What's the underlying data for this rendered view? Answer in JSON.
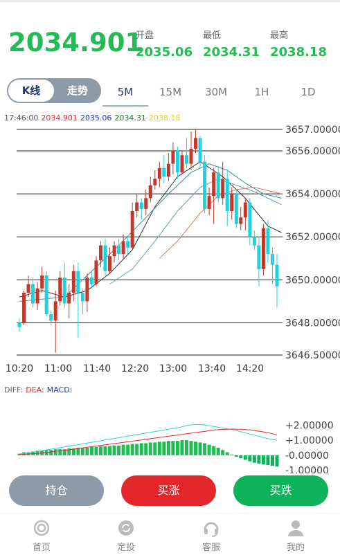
{
  "header": {
    "price": "2034.901",
    "open_label": "开盘",
    "open_value": "2035.06",
    "low_label": "最低",
    "low_value": "2034.31",
    "high_label": "最高",
    "high_value": "2038.18"
  },
  "toggle": {
    "kline_label": "K线",
    "trend_label": "走势"
  },
  "periods": [
    "5M",
    "15M",
    "30M",
    "1H",
    "1D"
  ],
  "info": {
    "time": "17:46:00",
    "v1": "2034.901",
    "v2": "2035.06",
    "v3": "2034.31",
    "v4": "2038.18"
  },
  "colors": {
    "green": "#22bb55",
    "red": "#e3262c",
    "blue": "#1e3a6e",
    "gray": "#8d9aa8"
  },
  "chart_data": [
    {
      "type": "candlestick",
      "y_ticks": [
        "3657.00000",
        "3656.00000",
        "3654.00000",
        "3652.00000",
        "3650.00000",
        "3648.00000",
        "3646.50000"
      ],
      "y_tick_values": [
        3657,
        3656,
        3654,
        3652,
        3650,
        3648,
        3646.5
      ],
      "ylim": [
        3646.5,
        3657
      ],
      "x_ticks": [
        "10:20",
        "11:00",
        "11:40",
        "12:20",
        "13:00",
        "13:40",
        "14:20"
      ],
      "candles": [
        [
          3648.0,
          3647.8,
          3648.2,
          3647.6
        ],
        [
          3648.0,
          3649.4,
          3649.5,
          3647.9
        ],
        [
          3649.4,
          3649.8,
          3650.2,
          3649.2
        ],
        [
          3649.8,
          3648.9,
          3650.1,
          3648.7
        ],
        [
          3648.9,
          3649.6,
          3649.9,
          3648.6
        ],
        [
          3649.6,
          3650.2,
          3650.6,
          3649.4
        ],
        [
          3650.2,
          3648.4,
          3650.4,
          3648.3
        ],
        [
          3648.4,
          3648.1,
          3648.6,
          3647.9
        ],
        [
          3648.1,
          3649.0,
          3649.5,
          3646.6
        ],
        [
          3649.0,
          3650.1,
          3650.4,
          3648.8
        ],
        [
          3650.1,
          3648.9,
          3650.8,
          3648.7
        ],
        [
          3648.9,
          3649.4,
          3649.8,
          3648.2
        ],
        [
          3649.4,
          3650.4,
          3650.7,
          3649.0
        ],
        [
          3650.4,
          3649.4,
          3650.8,
          3647.3
        ],
        [
          3649.4,
          3649.0,
          3649.6,
          3648.4
        ],
        [
          3649.0,
          3650.1,
          3650.3,
          3648.5
        ],
        [
          3650.1,
          3649.8,
          3650.4,
          3649.6
        ],
        [
          3649.8,
          3650.9,
          3651.1,
          3649.7
        ],
        [
          3650.9,
          3651.6,
          3651.8,
          3650.6
        ],
        [
          3651.6,
          3650.4,
          3651.9,
          3650.1
        ],
        [
          3650.4,
          3651.1,
          3651.5,
          3650.3
        ],
        [
          3651.1,
          3651.6,
          3651.8,
          3650.8
        ],
        [
          3651.6,
          3651.2,
          3651.9,
          3650.9
        ],
        [
          3651.2,
          3651.8,
          3652.1,
          3651.0
        ],
        [
          3651.8,
          3651.5,
          3652.0,
          3651.2
        ],
        [
          3651.5,
          3653.2,
          3653.6,
          3651.4
        ],
        [
          3653.2,
          3653.6,
          3654.0,
          3652.9
        ],
        [
          3653.6,
          3653.3,
          3653.8,
          3652.8
        ],
        [
          3653.3,
          3653.8,
          3654.2,
          3653.0
        ],
        [
          3653.8,
          3654.4,
          3654.8,
          3653.6
        ],
        [
          3654.4,
          3654.7,
          3655.1,
          3654.2
        ],
        [
          3654.7,
          3655.2,
          3655.5,
          3654.3
        ],
        [
          3655.2,
          3654.8,
          3655.8,
          3654.5
        ],
        [
          3654.8,
          3655.4,
          3655.9,
          3654.6
        ],
        [
          3655.4,
          3656.0,
          3656.4,
          3654.9
        ],
        [
          3656.0,
          3655.0,
          3656.2,
          3654.7
        ],
        [
          3655.0,
          3655.8,
          3656.0,
          3654.9
        ],
        [
          3655.8,
          3655.4,
          3656.6,
          3655.2
        ],
        [
          3655.4,
          3656.1,
          3656.9,
          3655.1
        ],
        [
          3656.1,
          3656.6,
          3657.0,
          3655.9
        ],
        [
          3656.6,
          3655.5,
          3656.7,
          3655.2
        ],
        [
          3655.5,
          3653.3,
          3655.8,
          3653.1
        ],
        [
          3653.3,
          3653.9,
          3654.3,
          3653.0
        ],
        [
          3653.9,
          3655.0,
          3655.2,
          3652.6
        ],
        [
          3655.0,
          3653.8,
          3655.3,
          3653.6
        ],
        [
          3653.8,
          3654.7,
          3655.5,
          3653.5
        ],
        [
          3654.7,
          3653.2,
          3655.1,
          3652.5
        ],
        [
          3653.2,
          3654.0,
          3654.3,
          3652.8
        ],
        [
          3654.0,
          3652.6,
          3654.2,
          3652.4
        ],
        [
          3652.6,
          3652.9,
          3653.4,
          3652.3
        ],
        [
          3652.9,
          3653.6,
          3653.8,
          3652.3
        ],
        [
          3653.6,
          3652.0,
          3653.8,
          3651.6
        ],
        [
          3652.0,
          3651.6,
          3652.3,
          3651.4
        ],
        [
          3651.6,
          3650.5,
          3652.0,
          3649.7
        ],
        [
          3650.5,
          3652.4,
          3652.6,
          3650.2
        ],
        [
          3652.4,
          3651.2,
          3652.8,
          3650.8
        ],
        [
          3651.2,
          3650.7,
          3651.5,
          3649.8
        ],
        [
          3650.7,
          3649.7,
          3651.2,
          3648.7
        ]
      ],
      "ma": {
        "black": [
          [
            0,
            3649.2
          ],
          [
            5,
            3649.5
          ],
          [
            10,
            3649.2
          ],
          [
            15,
            3649.5
          ],
          [
            20,
            3650.3
          ],
          [
            25,
            3651.4
          ],
          [
            30,
            3653.4
          ],
          [
            35,
            3654.8
          ],
          [
            40,
            3655.5
          ],
          [
            45,
            3654.8
          ],
          [
            50,
            3653.8
          ],
          [
            55,
            3652.5
          ],
          [
            58,
            3652.2
          ]
        ],
        "teal": [
          [
            0,
            3649.0
          ],
          [
            10,
            3649.2
          ],
          [
            16,
            3650.4
          ],
          [
            22,
            3651.6
          ],
          [
            28,
            3652.9
          ],
          [
            33,
            3654.0
          ],
          [
            38,
            3655.0
          ],
          [
            42,
            3655.4
          ],
          [
            46,
            3655.1
          ],
          [
            50,
            3654.5
          ],
          [
            54,
            3654.0
          ],
          [
            58,
            3653.8
          ]
        ],
        "blue": [
          [
            20,
            3649.8
          ],
          [
            25,
            3650.5
          ],
          [
            30,
            3651.8
          ],
          [
            35,
            3653.2
          ],
          [
            40,
            3654.3
          ],
          [
            44,
            3654.7
          ],
          [
            48,
            3654.4
          ],
          [
            52,
            3654.1
          ],
          [
            56,
            3653.7
          ],
          [
            58,
            3653.5
          ]
        ],
        "orange": [
          [
            31,
            3651.0
          ],
          [
            35,
            3651.8
          ],
          [
            40,
            3653.1
          ],
          [
            44,
            3653.9
          ],
          [
            48,
            3654.2
          ],
          [
            52,
            3654.3
          ],
          [
            56,
            3654.1
          ],
          [
            58,
            3654.0
          ]
        ]
      }
    },
    {
      "type": "bar",
      "title": "",
      "y_ticks": [
        "+2.00000",
        "+1.00000",
        "-0.00000",
        "-1.00000"
      ],
      "y_tick_values": [
        2,
        1,
        0,
        -1
      ],
      "ylim": [
        -1.2,
        2.2
      ],
      "histogram": [
        0.1,
        0.2,
        0.2,
        0.25,
        0.3,
        0.3,
        0.35,
        0.35,
        0.4,
        0.4,
        0.4,
        0.45,
        0.45,
        0.5,
        0.5,
        0.5,
        0.55,
        0.55,
        0.6,
        0.6,
        0.6,
        0.65,
        0.65,
        0.7,
        0.7,
        0.75,
        0.75,
        0.8,
        0.8,
        0.85,
        0.85,
        0.9,
        0.9,
        0.95,
        0.95,
        0.95,
        1.0,
        1.0,
        0.95,
        0.9,
        0.85,
        0.8,
        0.7,
        0.6,
        0.5,
        0.35,
        0.2,
        0.05,
        -0.1,
        -0.2,
        -0.3,
        -0.4,
        -0.5,
        -0.55,
        -0.6,
        -0.65,
        -0.7,
        -0.75
      ],
      "dif": [
        0.1,
        0.15,
        0.25,
        0.35,
        0.45,
        0.55,
        0.65,
        0.75,
        0.85,
        0.95,
        1.05,
        1.15,
        1.25,
        1.35,
        1.45,
        1.55,
        1.65,
        1.75,
        1.85,
        2.0,
        2.05,
        2.0,
        1.9,
        1.8,
        1.7,
        1.55,
        1.4,
        1.25,
        1.1,
        1.0
      ],
      "dea": [
        0.05,
        0.08,
        0.12,
        0.18,
        0.25,
        0.32,
        0.4,
        0.48,
        0.56,
        0.64,
        0.72,
        0.8,
        0.88,
        0.96,
        1.04,
        1.12,
        1.2,
        1.28,
        1.36,
        1.44,
        1.52,
        1.6,
        1.68,
        1.72,
        1.74,
        1.72,
        1.68,
        1.6,
        1.5,
        1.35
      ]
    }
  ],
  "macd_legend": {
    "diff": "DIFF:",
    "dea": "DEA:",
    "macd": "MACD:"
  },
  "actions": {
    "hold": "持仓",
    "up": "买涨",
    "down": "买跌"
  },
  "tabs": [
    "首页",
    "定投",
    "客服",
    "我的"
  ]
}
